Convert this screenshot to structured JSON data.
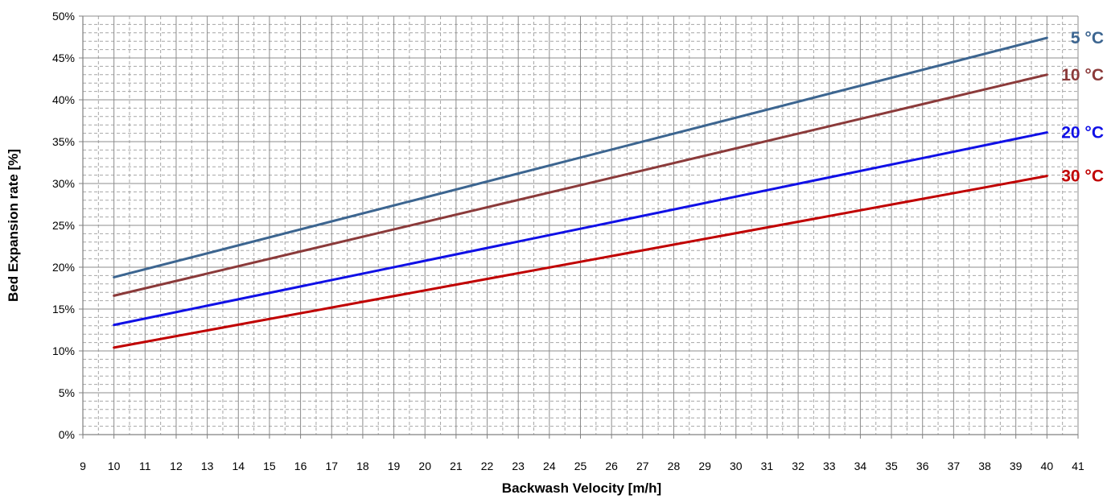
{
  "chart_data": {
    "type": "line",
    "xlabel": "Backwash Velocity [m/h]",
    "ylabel": "Bed Expansion rate [%]",
    "xlim": [
      9,
      41
    ],
    "ylim": [
      0,
      50
    ],
    "x_ticks": [
      9,
      10,
      11,
      12,
      13,
      14,
      15,
      16,
      17,
      18,
      19,
      20,
      21,
      22,
      23,
      24,
      25,
      26,
      27,
      28,
      29,
      30,
      31,
      32,
      33,
      34,
      35,
      36,
      37,
      38,
      39,
      40,
      41
    ],
    "y_ticks": [
      "0%",
      "5%",
      "10%",
      "15%",
      "20%",
      "25%",
      "30%",
      "35%",
      "40%",
      "45%",
      "50%"
    ],
    "grid": true,
    "series": [
      {
        "name": "5 °C",
        "color": "#3C6590",
        "x": [
          10,
          40
        ],
        "y": [
          18.8,
          47.4
        ]
      },
      {
        "name": "10 °C",
        "color": "#8B3A3A",
        "x": [
          10,
          40
        ],
        "y": [
          16.6,
          43.0
        ]
      },
      {
        "name": "20 °C",
        "color": "#1010E6",
        "x": [
          10,
          40
        ],
        "y": [
          13.1,
          36.1
        ]
      },
      {
        "name": "30 °C",
        "color": "#C00000",
        "x": [
          10,
          40
        ],
        "y": [
          10.4,
          30.9
        ]
      }
    ]
  }
}
